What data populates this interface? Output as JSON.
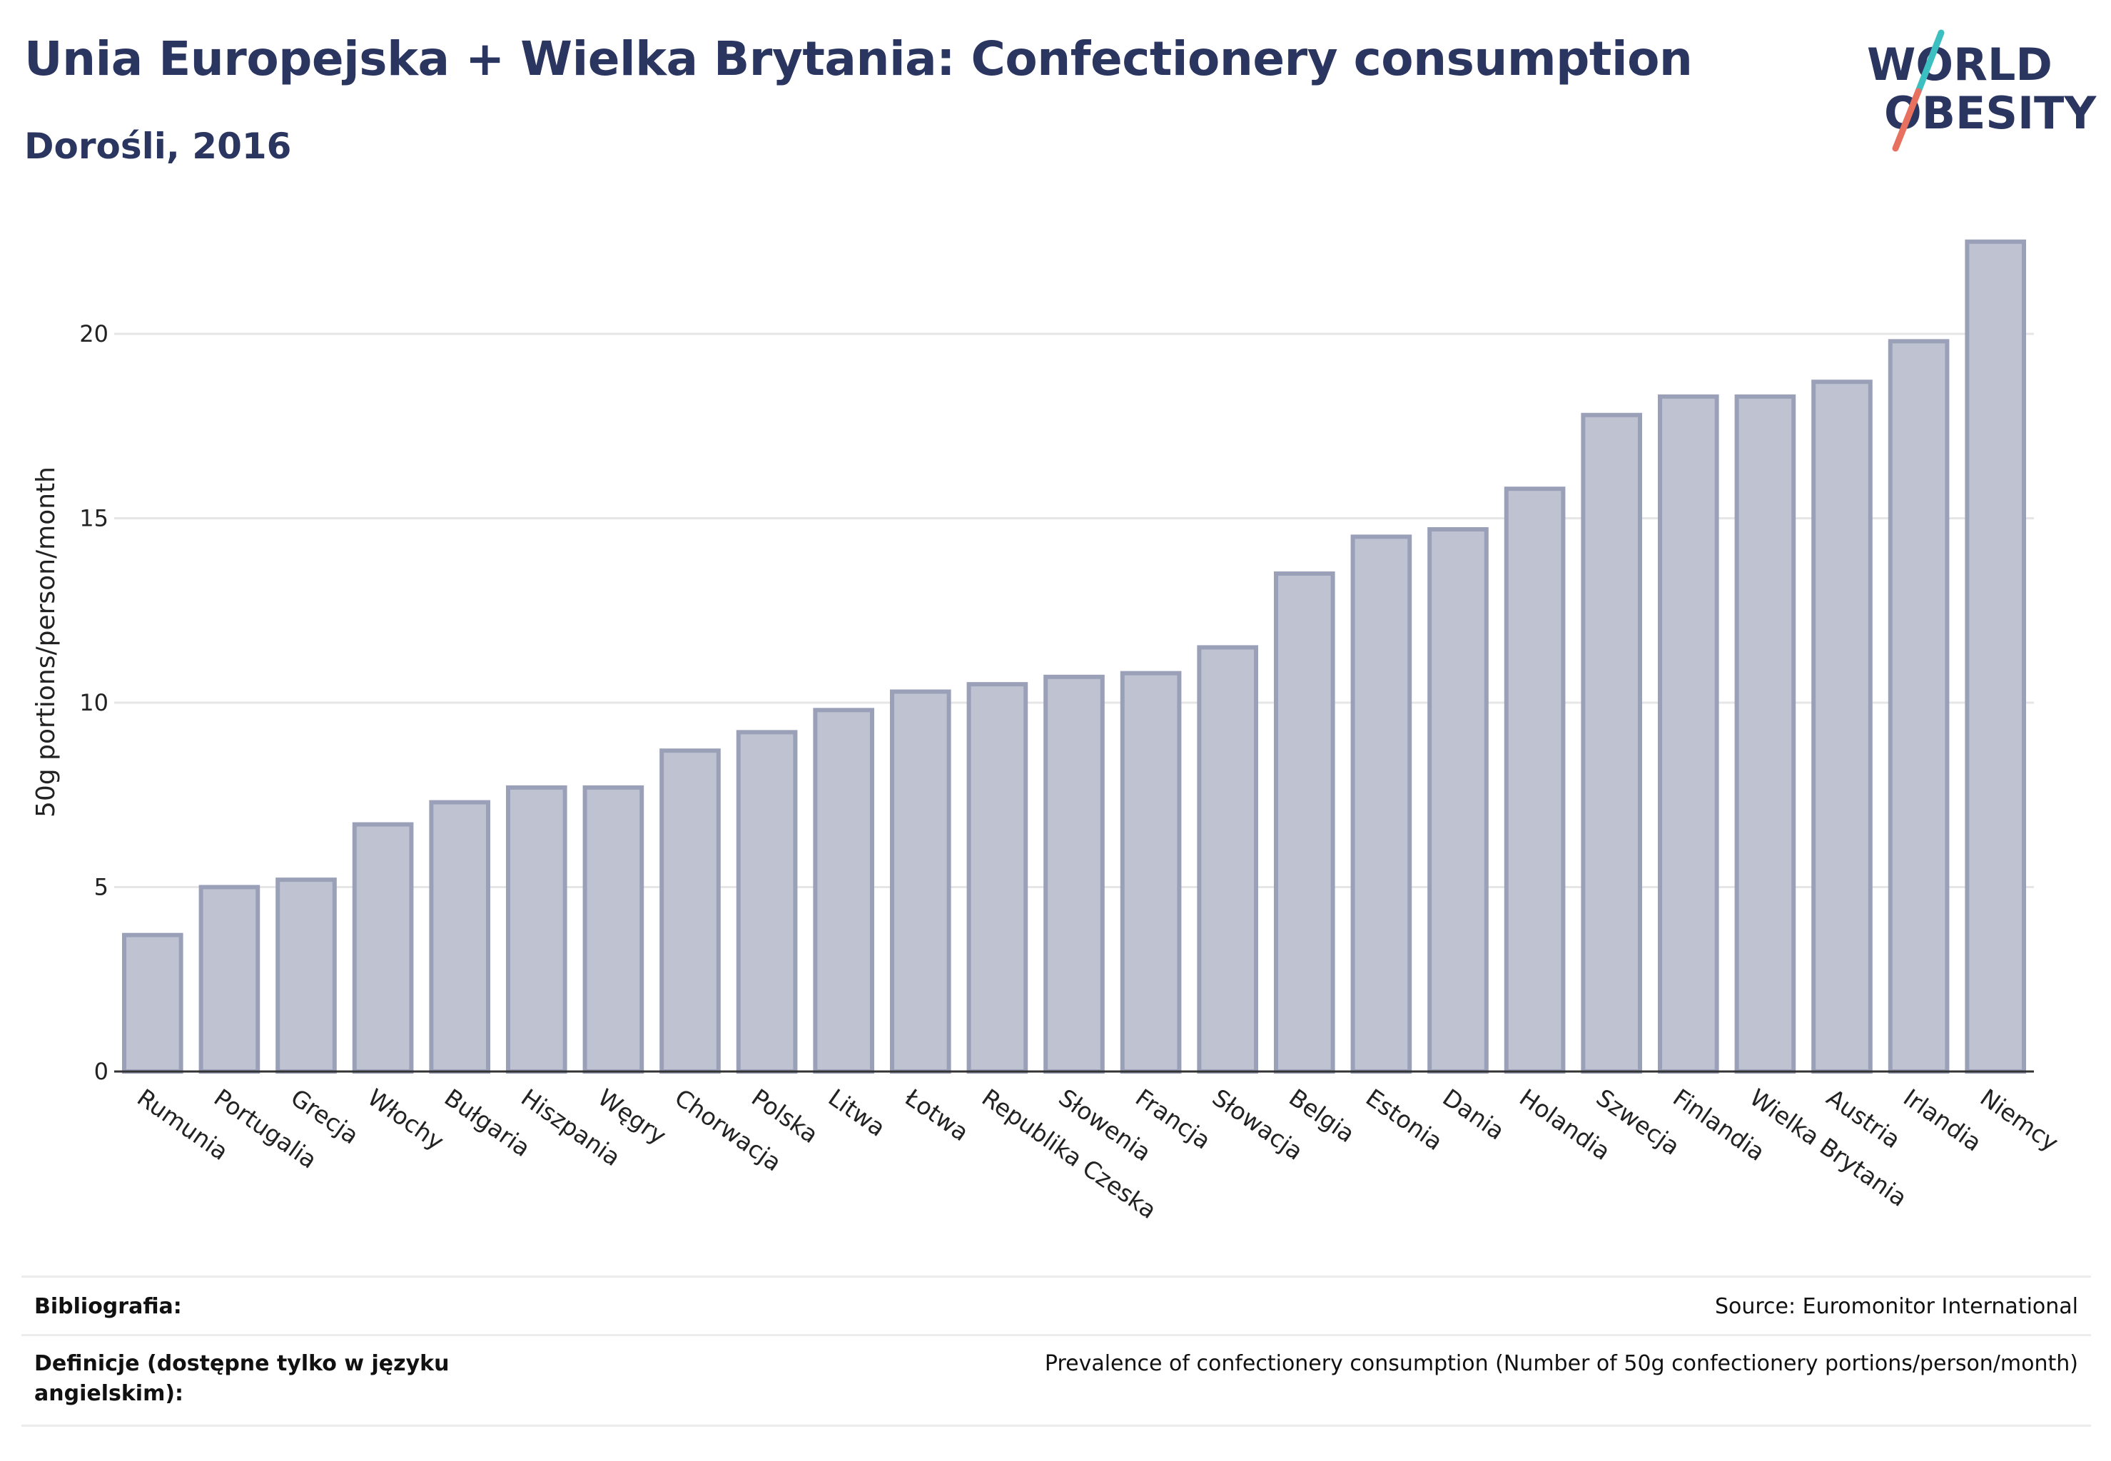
{
  "header": {
    "title": "Unia Europejska + Wielka Brytania: Confectionery consumption",
    "subtitle": "Dorośli, 2016"
  },
  "logo": {
    "line1": "WORLD",
    "line2": "OBESITY",
    "accent_teal": "#3bbfc1",
    "accent_coral": "#e8705f"
  },
  "colors": {
    "bar_fill": "#bfc3d1",
    "bar_stroke": "#9aa0b8",
    "text": "#2a3560",
    "grid": "#e6e6e6"
  },
  "chart_data": {
    "type": "bar",
    "title": "Unia Europejska + Wielka Brytania: Confectionery consumption",
    "subtitle": "Dorośli, 2016",
    "ylabel": "50g portions/person/month",
    "xlabel": "",
    "ylim": [
      0,
      23
    ],
    "yticks": [
      0,
      5,
      10,
      15,
      20
    ],
    "grid": true,
    "categories": [
      "Rumunia",
      "Portugalia",
      "Grecja",
      "Włochy",
      "Bułgaria",
      "Hiszpania",
      "Węgry",
      "Chorwacja",
      "Polska",
      "Litwa",
      "Łotwa",
      "Republika Czeska",
      "Słowenia",
      "Francja",
      "Słowacja",
      "Belgia",
      "Estonia",
      "Dania",
      "Holandia",
      "Szwecja",
      "Finlandia",
      "Wielka Brytania",
      "Austria",
      "Irlandia",
      "Niemcy"
    ],
    "values": [
      3.7,
      5.0,
      5.2,
      6.7,
      7.3,
      7.7,
      7.7,
      8.7,
      9.2,
      9.8,
      10.3,
      10.5,
      10.7,
      10.8,
      11.5,
      13.5,
      14.5,
      14.7,
      15.8,
      17.8,
      18.3,
      18.3,
      18.7,
      19.8,
      22.5
    ]
  },
  "footer": {
    "bibliography_label": "Bibliografia:",
    "bibliography_value": "Source: Euromonitor International",
    "definitions_label": "Definicje (dostępne tylko w języku angielskim):",
    "definitions_value": "Prevalence of confectionery consumption (Number of 50g confectionery portions/person/month)"
  }
}
